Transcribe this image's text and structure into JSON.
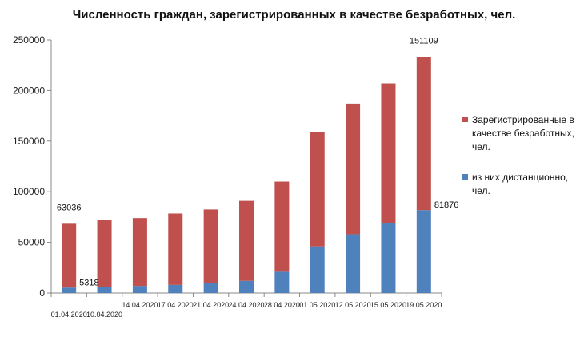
{
  "chart_data": {
    "type": "bar",
    "stacked": true,
    "title": "Численность граждан, зарегистрированных в качестве безработных, чел.",
    "categories": [
      "01.04.2020",
      "10.04.2020",
      "14.04.2020",
      "17.04.2020",
      "21.04.2020",
      "24.04.2020",
      "28.04.2020",
      "01.05.2020",
      "12.05.2020",
      "15.05.2020",
      "19.05.2020"
    ],
    "series": [
      {
        "name": "из них дистанционно, чел.",
        "color": "#4f81bd",
        "values": [
          5318,
          6000,
          7000,
          8000,
          9500,
          12000,
          21000,
          46000,
          58000,
          69000,
          81876
        ]
      },
      {
        "name": "Зарегистрированные в качестве безработных, чел.",
        "color": "#c0504d",
        "values": [
          63036,
          66000,
          67000,
          70500,
          73000,
          79000,
          89000,
          113000,
          129000,
          138000,
          151109
        ]
      }
    ],
    "data_labels": [
      {
        "category": "01.04.2020",
        "series": 1,
        "text": "63036"
      },
      {
        "category": "01.04.2020",
        "series": 0,
        "text": "5318"
      },
      {
        "category": "19.05.2020",
        "series": 1,
        "text": "151109"
      },
      {
        "category": "19.05.2020",
        "series": 0,
        "text": "81876"
      }
    ],
    "y_ticks": [
      "0",
      "50000",
      "100000",
      "150000",
      "200000",
      "250000"
    ],
    "ylim": [
      0,
      250000
    ],
    "legend_position": "right",
    "legend_lines": [
      [
        "Зарегистрированные в",
        "качестве безработных,",
        "чел."
      ],
      [
        "из них дистанционно,",
        "чел."
      ]
    ],
    "grid": false
  }
}
